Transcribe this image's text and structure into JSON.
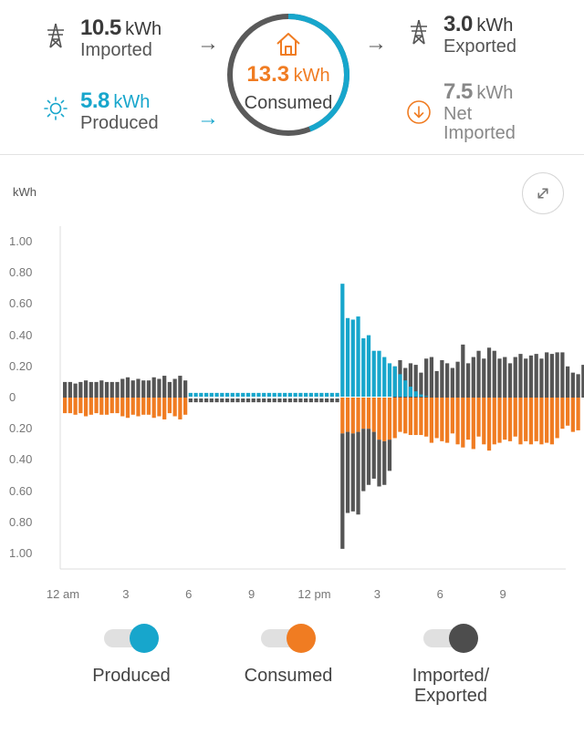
{
  "summary": {
    "imported": {
      "value": "10.5",
      "unit": "kWh",
      "label": "Imported"
    },
    "produced": {
      "value": "5.8",
      "unit": "kWh",
      "label": "Produced"
    },
    "consumed": {
      "value": "13.3",
      "unit": "kWh",
      "label": "Consumed"
    },
    "exported": {
      "value": "3.0",
      "unit": "kWh",
      "label": "Exported"
    },
    "net": {
      "value": "7.5",
      "unit": "kWh",
      "label_line1": "Net",
      "label_line2": "Imported"
    },
    "solar_fraction_of_consumption": 0.44
  },
  "colors": {
    "produced": "#17a6cc",
    "consumed": "#f07c22",
    "grid": "#555555"
  },
  "chart_data": {
    "type": "bar",
    "ylabel": "kWh",
    "ylim": [
      -1.0,
      1.0
    ],
    "y_tick_labels": [
      "1.00",
      "0.80",
      "0.60",
      "0.40",
      "0.20",
      "0",
      "0.20",
      "0.40",
      "0.60",
      "0.80",
      "1.00"
    ],
    "x_tick_labels": [
      "12 am",
      "3",
      "6",
      "9",
      "12 pm",
      "3",
      "6",
      "9"
    ],
    "x_tick_hours": [
      0,
      3,
      6,
      9,
      12,
      15,
      18,
      21
    ],
    "interval_hours": 0.25,
    "grid": false,
    "series": [
      {
        "name": "Produced",
        "color": "#17a6cc",
        "direction": "up",
        "values": [
          0,
          0,
          0,
          0,
          0,
          0,
          0,
          0,
          0,
          0,
          0,
          0,
          0,
          0,
          0,
          0,
          0,
          0,
          0,
          0,
          0,
          0,
          0,
          0,
          0.03,
          0.03,
          0.03,
          0.03,
          0.03,
          0.03,
          0.03,
          0.03,
          0.03,
          0.03,
          0.03,
          0.03,
          0.03,
          0.03,
          0.03,
          0.03,
          0.03,
          0.03,
          0.03,
          0.03,
          0.03,
          0.03,
          0.03,
          0.03,
          0.03,
          0.03,
          0.03,
          0.03,
          0.03,
          0.73,
          0.51,
          0.5,
          0.52,
          0.38,
          0.4,
          0.3,
          0.3,
          0.26,
          0.22,
          0.2,
          0.15,
          0.11,
          0.07,
          0.04,
          0.02,
          0.01,
          0,
          0,
          0,
          0,
          0,
          0,
          0,
          0,
          0,
          0,
          0,
          0,
          0,
          0,
          0,
          0,
          0,
          0,
          0,
          0,
          0,
          0,
          0,
          0,
          0,
          0,
          0,
          0,
          0,
          0,
          0
        ]
      },
      {
        "name": "Consumed",
        "color": "#f07c22",
        "direction": "down",
        "values": [
          0.1,
          0.1,
          0.11,
          0.1,
          0.12,
          0.11,
          0.1,
          0.11,
          0.11,
          0.1,
          0.1,
          0.12,
          0.13,
          0.11,
          0.12,
          0.11,
          0.11,
          0.13,
          0.12,
          0.14,
          0.1,
          0.12,
          0.14,
          0.11,
          0,
          0,
          0,
          0,
          0,
          0,
          0,
          0,
          0,
          0,
          0,
          0,
          0,
          0,
          0,
          0,
          0,
          0,
          0,
          0,
          0,
          0,
          0,
          0,
          0,
          0,
          0,
          0,
          0,
          0.23,
          0.22,
          0.23,
          0.22,
          0.2,
          0.2,
          0.22,
          0.27,
          0.28,
          0.27,
          0.26,
          0.22,
          0.23,
          0.24,
          0.24,
          0.24,
          0.25,
          0.29,
          0.26,
          0.28,
          0.29,
          0.23,
          0.3,
          0.32,
          0.27,
          0.33,
          0.25,
          0.3,
          0.34,
          0.3,
          0.29,
          0.27,
          0.28,
          0.25,
          0.3,
          0.28,
          0.3,
          0.28,
          0.3,
          0.29,
          0.3,
          0.26,
          0.2,
          0.18,
          0.22,
          0.21
        ]
      },
      {
        "name": "Imported/Exported",
        "color": "#555555",
        "direction": "both",
        "values": [
          0.1,
          0.1,
          0.09,
          0.1,
          0.11,
          0.1,
          0.1,
          0.11,
          0.1,
          0.1,
          0.1,
          0.12,
          0.13,
          0.11,
          0.12,
          0.11,
          0.11,
          0.13,
          0.12,
          0.14,
          0.1,
          0.12,
          0.14,
          0.11,
          -0.03,
          -0.03,
          -0.03,
          -0.03,
          -0.03,
          -0.03,
          -0.03,
          -0.03,
          -0.03,
          -0.03,
          -0.03,
          -0.03,
          -0.03,
          -0.03,
          -0.03,
          -0.03,
          -0.03,
          -0.03,
          -0.03,
          -0.03,
          -0.03,
          -0.03,
          -0.03,
          -0.03,
          -0.03,
          -0.03,
          -0.03,
          -0.03,
          -0.03,
          -0.74,
          -0.52,
          -0.5,
          -0.53,
          -0.4,
          -0.36,
          -0.3,
          -0.3,
          -0.28,
          -0.2,
          0.2,
          0.24,
          0.19,
          0.22,
          0.21,
          0.16,
          0.25,
          0.26,
          0.17,
          0.24,
          0.22,
          0.19,
          0.23,
          0.34,
          0.22,
          0.26,
          0.3,
          0.25,
          0.32,
          0.3,
          0.25,
          0.26,
          0.22,
          0.26,
          0.28,
          0.25,
          0.27,
          0.28,
          0.25,
          0.29,
          0.28,
          0.29,
          0.29,
          0.2,
          0.16,
          0.15,
          0.21
        ]
      }
    ]
  },
  "legend": {
    "produced": "Produced",
    "consumed": "Consumed",
    "imported_line1": "Imported/",
    "imported_line2": "Exported"
  }
}
